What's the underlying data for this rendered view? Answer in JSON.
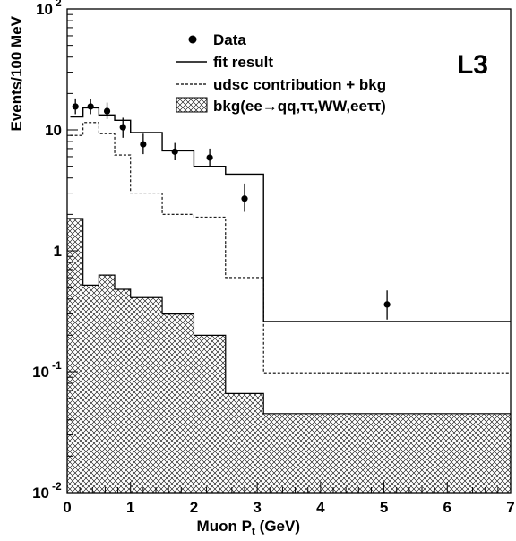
{
  "chart_data": {
    "type": "histogram",
    "xlabel": "Muon P",
    "xlabel_sub": "t",
    "xlabel_unit": "(GeV)",
    "ylabel": "Events/100 MeV",
    "xlim": [
      0,
      7
    ],
    "ylim": [
      0.01,
      100
    ],
    "yscale": "log",
    "x_ticks": [
      "0",
      "1",
      "2",
      "3",
      "4",
      "5",
      "6",
      "7"
    ],
    "y_ticks": [
      {
        "base": "10",
        "exp": "-2",
        "value": 0.01
      },
      {
        "base": "10",
        "exp": "-1",
        "value": 0.1
      },
      {
        "base": "1",
        "exp": "",
        "value": 1
      },
      {
        "base": "10",
        "exp": "",
        "value": 10
      },
      {
        "base": "10",
        "exp": "2",
        "value": 100
      }
    ],
    "experiment_label": "L3",
    "legend": {
      "data": "Data",
      "fit": "fit result",
      "udsc": "udsc contribution + bkg",
      "bkg": "bkg(ee→qq,ττ,WW,eeττ)"
    },
    "data_points": [
      {
        "x": 0.13,
        "y": 15.6,
        "ylo": 13.5,
        "yhi": 18.2
      },
      {
        "x": 0.37,
        "y": 15.6,
        "ylo": 13.5,
        "yhi": 18.0
      },
      {
        "x": 0.63,
        "y": 14.3,
        "ylo": 12.3,
        "yhi": 16.8
      },
      {
        "x": 0.88,
        "y": 10.5,
        "ylo": 8.6,
        "yhi": 12.6
      },
      {
        "x": 1.2,
        "y": 7.6,
        "ylo": 6.3,
        "yhi": 9.3
      },
      {
        "x": 1.7,
        "y": 6.6,
        "ylo": 5.6,
        "yhi": 7.8
      },
      {
        "x": 2.25,
        "y": 5.9,
        "ylo": 5.0,
        "yhi": 7.0
      },
      {
        "x": 2.8,
        "y": 2.7,
        "ylo": 2.1,
        "yhi": 3.6
      },
      {
        "x": 5.05,
        "y": 0.36,
        "ylo": 0.27,
        "yhi": 0.47
      }
    ],
    "fit_result": {
      "edges": [
        0.05,
        0.25,
        0.5,
        0.75,
        1.0,
        1.5,
        2.0,
        2.5,
        3.1,
        7.0
      ],
      "values": [
        12.8,
        15.2,
        13.3,
        12.0,
        9.5,
        6.7,
        5.0,
        4.3,
        0.26
      ]
    },
    "udsc_contribution": {
      "edges": [
        0.05,
        0.25,
        0.5,
        0.75,
        1.0,
        1.5,
        2.0,
        2.5,
        3.1,
        7.0
      ],
      "values": [
        9.0,
        11.5,
        9.3,
        6.2,
        3.0,
        2.0,
        1.9,
        0.6,
        0.098
      ]
    },
    "background": {
      "edges": [
        0.0,
        0.25,
        0.5,
        0.75,
        1.0,
        1.5,
        2.0,
        2.5,
        3.1,
        7.0
      ],
      "values": [
        1.85,
        0.52,
        0.63,
        0.48,
        0.41,
        0.3,
        0.2,
        0.066,
        0.045
      ]
    }
  }
}
